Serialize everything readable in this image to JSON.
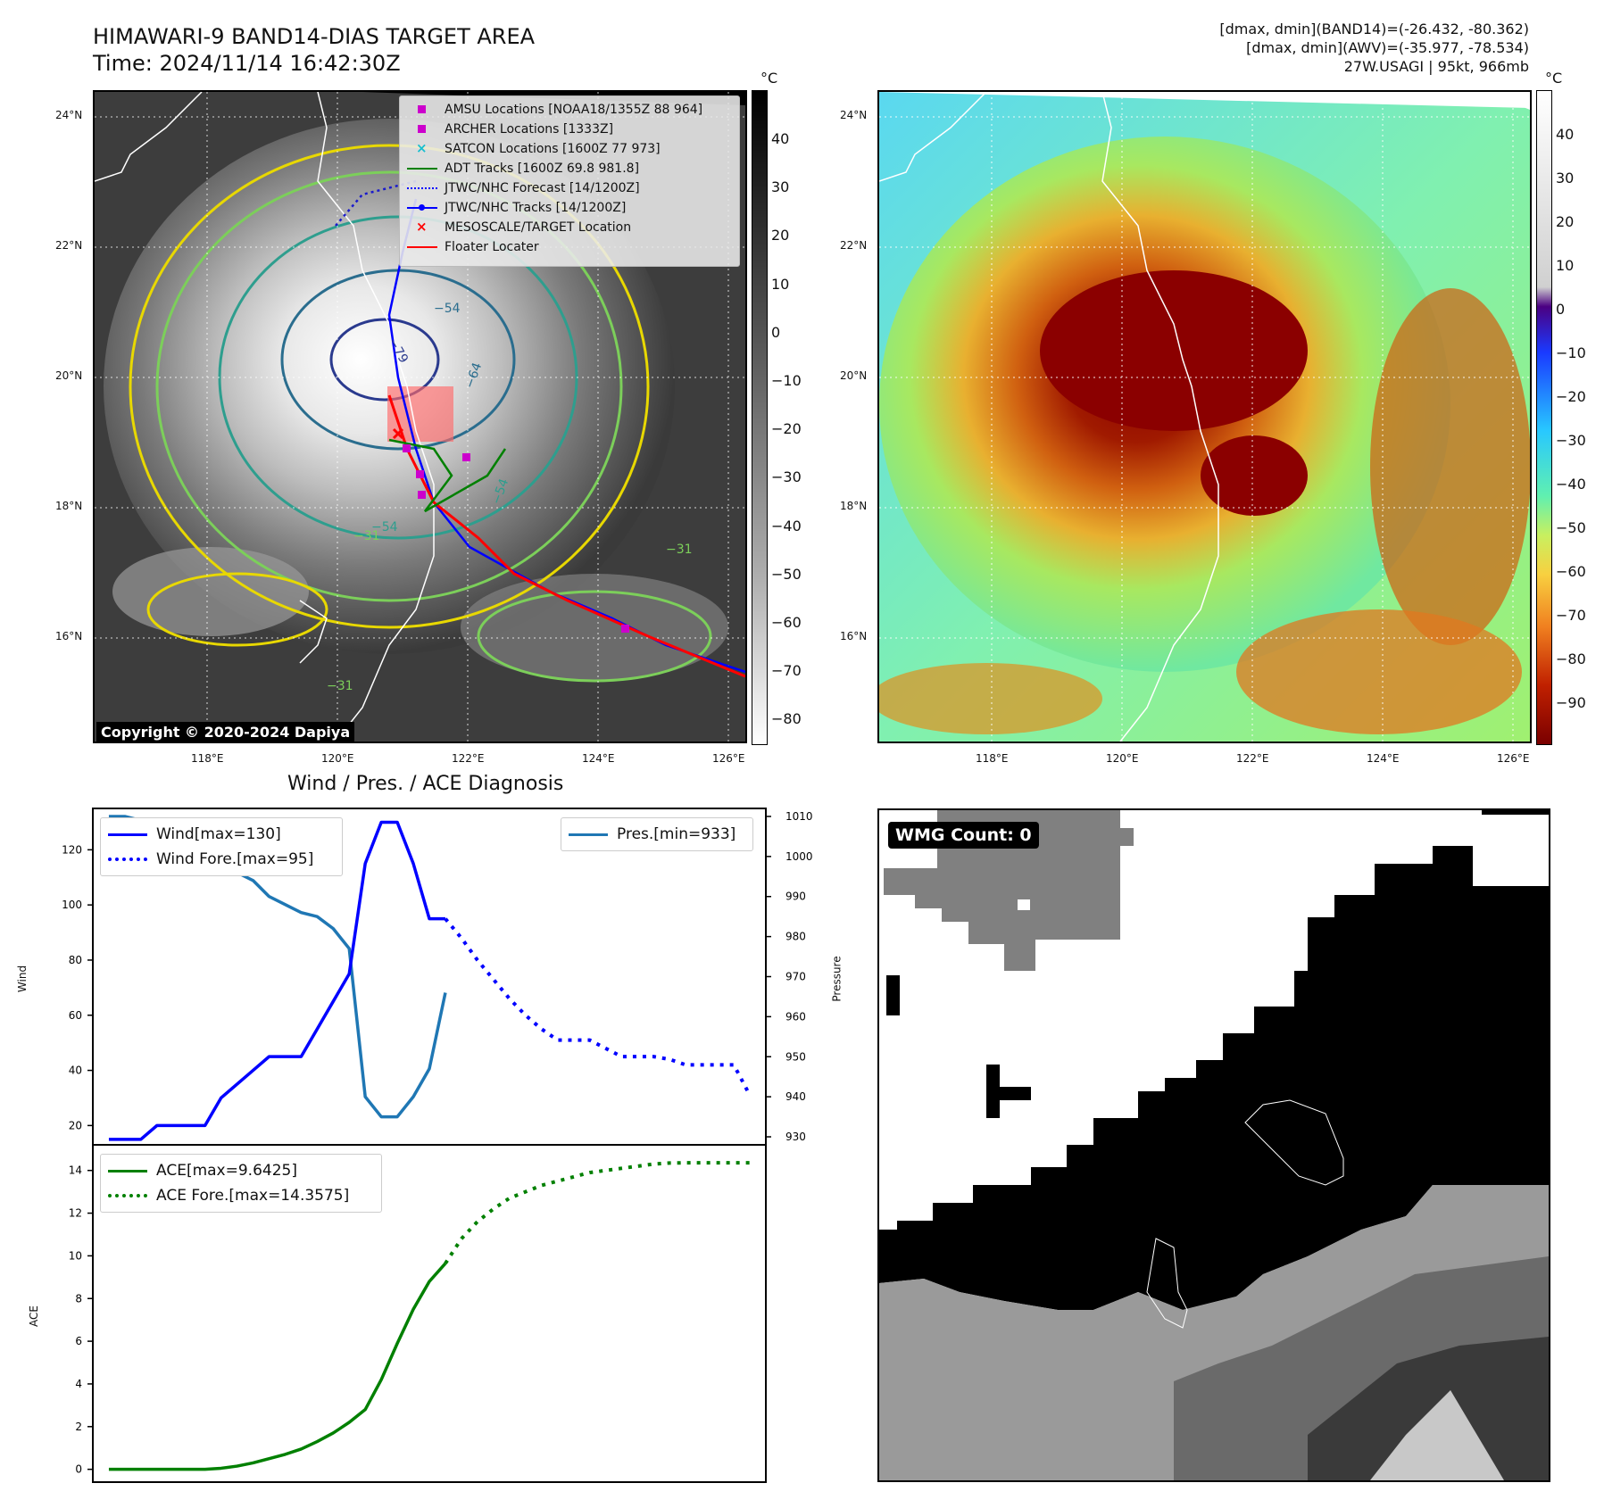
{
  "header": {
    "title_line1": "HIMAWARI-9 BAND14-DIAS TARGET AREA",
    "title_line2": "Time: 2024/11/14 16:42:30Z",
    "info_line1": "[dmax, dmin](BAND14)=(-26.432, -80.362)",
    "info_line2": "[dmax, dmin](AWV)=(-35.977, -78.534)",
    "info_line3": "27W.USAGI | 95kt, 966mb"
  },
  "maps": {
    "lat_labels": [
      "24°N",
      "22°N",
      "20°N",
      "18°N",
      "16°N"
    ],
    "lon_labels": [
      "118°E",
      "120°E",
      "122°E",
      "124°E",
      "126°E"
    ],
    "colorbar_unit": "°C",
    "gray_colorbar_ticks": [
      "40",
      "30",
      "20",
      "10",
      "0",
      "−10",
      "−20",
      "−30",
      "−40",
      "−50",
      "−60",
      "−70",
      "−80"
    ],
    "color_colorbar_ticks": [
      "40",
      "30",
      "20",
      "10",
      "0",
      "−10",
      "−20",
      "−30",
      "−40",
      "−50",
      "−60",
      "−70",
      "−80",
      "−90"
    ],
    "contour_labels": [
      "−54",
      "−64",
      "−79",
      "−54",
      "−54",
      "−31",
      "−31",
      "−31"
    ],
    "copyright": "Copyright © 2020-2024 Dapiya"
  },
  "legend": {
    "items": [
      {
        "label": "AMSU Locations [NOAA18/1355Z 88 964]",
        "symbol": "square",
        "color": "#cc00cc"
      },
      {
        "label": "ARCHER Locations [1333Z]",
        "symbol": "square",
        "color": "#cc00cc"
      },
      {
        "label": "SATCON Locations [1600Z 77 973]",
        "symbol": "x",
        "color": "#17becf"
      },
      {
        "label": "ADT Tracks [1600Z 69.8 981.8]",
        "symbol": "line",
        "color": "#008000"
      },
      {
        "label": "JTWC/NHC Forecast [14/1200Z]",
        "symbol": "dotted",
        "color": "#0000ff"
      },
      {
        "label": "JTWC/NHC Tracks [14/1200Z]",
        "symbol": "line-dot",
        "color": "#0000ff"
      },
      {
        "label": "MESOSCALE/TARGET Location",
        "symbol": "x",
        "color": "#ff0000"
      },
      {
        "label": "Floater Locater",
        "symbol": "line",
        "color": "#ff0000"
      }
    ]
  },
  "diagnosis": {
    "title": "Wind / Pres. / ACE Diagnosis",
    "wind_ylabel": "Wind",
    "pressure_ylabel": "Pressure",
    "ace_ylabel": "ACE",
    "wind_legend": "Wind[max=130]",
    "wind_fore_legend": "Wind Fore.[max=95]",
    "pres_legend": "Pres.[min=933]",
    "ace_legend": "ACE[max=9.6425]",
    "ace_fore_legend": "ACE Fore.[max=14.3575]",
    "wmg_count": "WMG Count: 0"
  },
  "colors": {
    "wind": "#0000ff",
    "pressure": "#1f77b4",
    "ace": "#008000",
    "floater": "#ff0000",
    "amsu": "#cc00cc"
  },
  "chart_data": [
    {
      "type": "line",
      "title": "Wind / Pres. / ACE Diagnosis",
      "ylabel": "Wind",
      "ylim": [
        13,
        135
      ],
      "yticks": [
        20,
        40,
        60,
        80,
        100,
        120
      ],
      "x_range": [
        -1,
        41
      ],
      "series": [
        {
          "name": "Wind[max=130]",
          "style": "solid",
          "color": "#0000ff",
          "x": [
            0,
            2,
            3,
            6,
            7,
            9,
            10,
            12,
            13,
            14,
            15,
            16,
            17,
            18,
            19,
            20,
            21
          ],
          "values": [
            15,
            15,
            20,
            20,
            30,
            40,
            45,
            45,
            55,
            65,
            75,
            115,
            130,
            130,
            115,
            95,
            95
          ]
        },
        {
          "name": "Wind Fore.[max=95]",
          "style": "dotted",
          "color": "#0000ff",
          "x": [
            21,
            22,
            23,
            24,
            25,
            26,
            27,
            28,
            29,
            30,
            31,
            32,
            33,
            34,
            35,
            36,
            37,
            38,
            39,
            40
          ],
          "values": [
            95,
            88,
            80,
            73,
            66,
            60,
            55,
            51,
            51,
            51,
            48,
            45,
            45,
            45,
            44,
            42,
            42,
            42,
            42,
            31
          ]
        }
      ],
      "secondary_axis": {
        "ylabel": "Pressure",
        "ylim": [
          928,
          1012
        ],
        "yticks": [
          930,
          940,
          950,
          960,
          970,
          980,
          990,
          1000,
          1010
        ],
        "series": [
          {
            "name": "Pres.[min=933]",
            "style": "solid",
            "color": "#1f77b4",
            "x": [
              0,
              1,
              2,
              3,
              4,
              5,
              6,
              7,
              8,
              9,
              10,
              11,
              12,
              13,
              14,
              15,
              16,
              17,
              18,
              19,
              20,
              21
            ],
            "values": [
              1010,
              1010,
              1009,
              1008,
              1006,
              1004,
              1004,
              1000,
              996,
              994,
              990,
              988,
              986,
              985,
              982,
              977,
              940,
              935,
              935,
              940,
              947,
              966
            ]
          }
        ]
      }
    },
    {
      "type": "line",
      "ylabel": "ACE",
      "ylim": [
        -0.6,
        15.2
      ],
      "yticks": [
        0,
        2,
        4,
        6,
        8,
        10,
        12,
        14
      ],
      "x_range": [
        -1,
        41
      ],
      "series": [
        {
          "name": "ACE[max=9.6425]",
          "style": "solid",
          "color": "#008000",
          "x": [
            0,
            1,
            2,
            3,
            4,
            5,
            6,
            7,
            8,
            9,
            10,
            11,
            12,
            13,
            14,
            15,
            16,
            17,
            18,
            19,
            20,
            21
          ],
          "values": [
            0,
            0,
            0,
            0,
            0,
            0,
            0,
            0.05,
            0.15,
            0.3,
            0.5,
            0.7,
            0.95,
            1.3,
            1.7,
            2.2,
            2.8,
            4.2,
            5.9,
            7.5,
            8.8,
            9.6425
          ]
        },
        {
          "name": "ACE Fore.[max=14.3575]",
          "style": "dotted",
          "color": "#008000",
          "x": [
            21,
            22,
            23,
            24,
            25,
            26,
            27,
            28,
            29,
            30,
            31,
            32,
            33,
            34,
            35,
            36,
            37,
            38,
            39,
            40
          ],
          "values": [
            9.6425,
            10.8,
            11.6,
            12.2,
            12.7,
            13.0,
            13.3,
            13.5,
            13.7,
            13.9,
            14.0,
            14.1,
            14.2,
            14.3,
            14.35,
            14.3575,
            14.3575,
            14.3575,
            14.3575,
            14.3575
          ]
        }
      ]
    }
  ]
}
